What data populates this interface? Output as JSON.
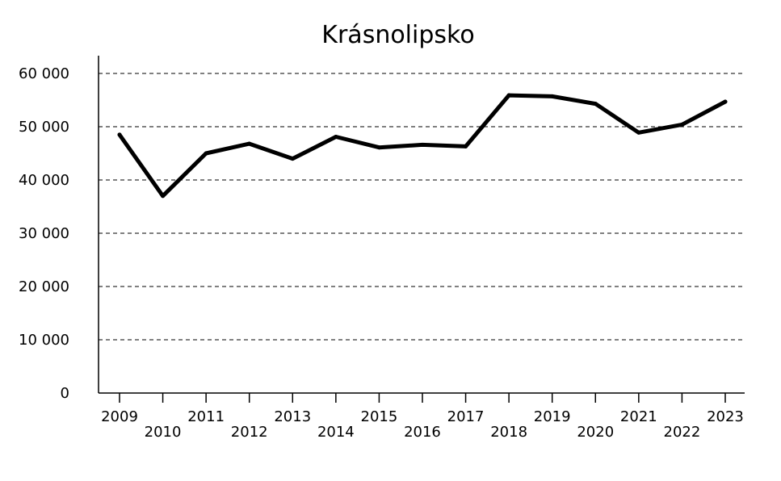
{
  "chart_data": {
    "type": "line",
    "title": "Krásnolipsko",
    "xlabel": "",
    "ylabel": "",
    "categories": [
      "2009",
      "2010",
      "2011",
      "2012",
      "2013",
      "2014",
      "2015",
      "2016",
      "2017",
      "2018",
      "2019",
      "2020",
      "2021",
      "2022",
      "2023"
    ],
    "series": [
      {
        "values": [
          48500,
          37000,
          45000,
          46800,
          44000,
          48100,
          46100,
          46600,
          46300,
          55900,
          55700,
          54300,
          48900,
          50400,
          54700
        ],
        "color": "#000000"
      }
    ],
    "ylim": [
      0,
      60000
    ],
    "yticks": [
      0,
      10000,
      20000,
      30000,
      40000,
      50000,
      60000
    ],
    "ytick_labels": [
      "0",
      "10 000",
      "20 000",
      "30 000",
      "40 000",
      "50 000",
      "60 000"
    ],
    "grid": true,
    "grid_style": "dashed",
    "legend": "none"
  }
}
